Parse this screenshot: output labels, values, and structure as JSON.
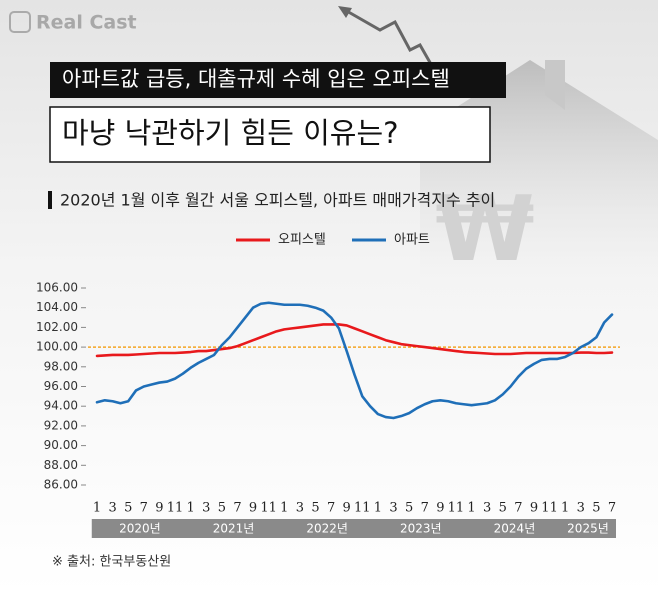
{
  "logo": "Real Cast",
  "headline": "아파트값 급등, 대출규제 수혜 입은 오피스텔",
  "headline2": "마냥 낙관하기 힘든 이유는?",
  "source": "※ 출처: 한국부동산원",
  "chart_data": {
    "type": "line",
    "title": "2020년 1월 이후 월간 서울 오피스텔, 아파트 매매가격지수 추이",
    "categories": [
      "1",
      null,
      "3",
      null,
      "5",
      null,
      "7",
      null,
      "9",
      null,
      "11",
      null,
      "1",
      null,
      "3",
      null,
      "5",
      null,
      "7",
      null,
      "9",
      null,
      "11",
      null,
      "1",
      null,
      "3",
      null,
      "5",
      null,
      "7",
      null,
      "9",
      null,
      "11",
      null,
      "1",
      null,
      "3",
      null,
      "5",
      null,
      "7",
      null,
      "9",
      null,
      "11",
      null,
      "1",
      null,
      "3",
      null,
      "5",
      null,
      "7",
      null,
      "9",
      null,
      "11",
      null,
      "1",
      null,
      "3",
      null,
      "5",
      null,
      "7"
    ],
    "year_labels": [
      "2020년",
      "2021년",
      "2022년",
      "2023년",
      "2024년",
      "2025년"
    ],
    "series": [
      {
        "name": "오피스텔",
        "color": "#e8191c",
        "values": [
          99.1,
          99.15,
          99.2,
          99.2,
          99.2,
          99.25,
          99.3,
          99.35,
          99.4,
          99.4,
          99.4,
          99.45,
          99.5,
          99.6,
          99.6,
          99.7,
          99.8,
          99.9,
          100.1,
          100.4,
          100.7,
          101.0,
          101.3,
          101.6,
          101.8,
          101.9,
          102.0,
          102.1,
          102.2,
          102.3,
          102.3,
          102.3,
          102.2,
          101.9,
          101.6,
          101.3,
          101.0,
          100.7,
          100.5,
          100.3,
          100.2,
          100.1,
          100.0,
          99.9,
          99.8,
          99.7,
          99.6,
          99.5,
          99.45,
          99.4,
          99.35,
          99.3,
          99.3,
          99.3,
          99.35,
          99.4,
          99.4,
          99.4,
          99.4,
          99.4,
          99.4,
          99.4,
          99.45,
          99.45,
          99.4,
          99.4,
          99.45
        ]
      },
      {
        "name": "아파트",
        "color": "#1f6fb8",
        "values": [
          94.4,
          94.6,
          94.5,
          94.3,
          94.5,
          95.6,
          96.0,
          96.2,
          96.4,
          96.5,
          96.8,
          97.3,
          97.9,
          98.4,
          98.8,
          99.2,
          100.2,
          101.0,
          102.0,
          103.0,
          104.0,
          104.4,
          104.5,
          104.4,
          104.3,
          104.3,
          104.3,
          104.2,
          104.0,
          103.7,
          103.0,
          101.9,
          99.6,
          97.2,
          95.0,
          94.0,
          93.2,
          92.9,
          92.8,
          93.0,
          93.3,
          93.8,
          94.2,
          94.5,
          94.6,
          94.5,
          94.3,
          94.2,
          94.1,
          94.2,
          94.3,
          94.6,
          95.2,
          96.0,
          97.0,
          97.8,
          98.3,
          98.7,
          98.8,
          98.8,
          99.0,
          99.4,
          100.0,
          100.4,
          101.0,
          102.5,
          103.3
        ]
      }
    ],
    "ylim": [
      86,
      106
    ],
    "yticks": [
      {
        "value": 86,
        "label": "86.00"
      },
      {
        "value": 88,
        "label": "88.00"
      },
      {
        "value": 90,
        "label": "90.00"
      },
      {
        "value": 92,
        "label": "92.00"
      },
      {
        "value": 94,
        "label": "94.00"
      },
      {
        "value": 96,
        "label": "96.00"
      },
      {
        "value": 98,
        "label": "98.00"
      },
      {
        "value": 100,
        "label": "100.00"
      },
      {
        "value": 102,
        "label": "102.00"
      },
      {
        "value": 104,
        "label": "104.00"
      },
      {
        "value": 106,
        "label": "106.00"
      }
    ],
    "reference_line": 100,
    "reference_color": "#f5a623",
    "legend": "top"
  }
}
